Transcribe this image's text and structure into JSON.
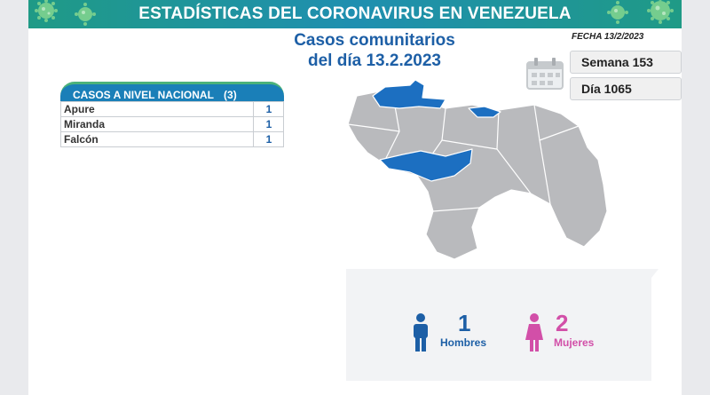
{
  "header": {
    "title": "ESTADÍSTICAS DEL CORONAVIRUS EN VENEZUELA"
  },
  "subtitle": {
    "line1": "Casos comunitarios",
    "line2": "del día 13.2.2023"
  },
  "fecha": "FECHA 13/2/2023",
  "semana": "Semana 153",
  "dia": "Día 1065",
  "table": {
    "title": "CASOS A NIVEL NACIONAL",
    "total": "(3)",
    "rows": [
      {
        "state": "Apure",
        "cases": "1"
      },
      {
        "state": "Miranda",
        "cases": "1"
      },
      {
        "state": "Falcón",
        "cases": "1"
      }
    ]
  },
  "gender": {
    "men_count": "1",
    "men_label": "Hombres",
    "women_count": "2",
    "women_label": "Mujeres"
  },
  "colors": {
    "header": "#1f8fb0",
    "highlight_state": "#1c6fc1",
    "other_states": "#b9babd",
    "men": "#1d5fa6",
    "women": "#d24fa8"
  },
  "icons": [
    "virus-icon",
    "calendar-icon",
    "man-icon",
    "woman-icon"
  ]
}
